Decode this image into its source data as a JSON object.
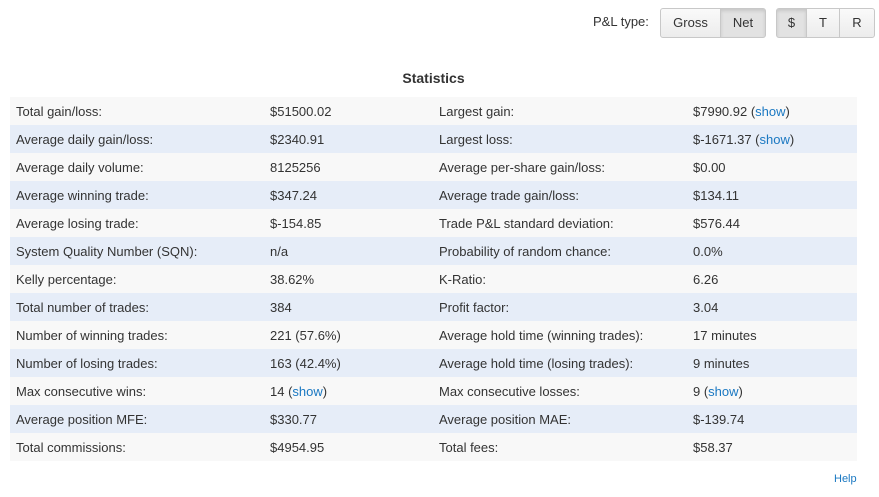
{
  "toolbar": {
    "label": "P&L type:",
    "type_buttons": [
      "Gross",
      "Net"
    ],
    "unit_buttons": [
      "$",
      "T",
      "R"
    ]
  },
  "title": "Statistics",
  "table": {
    "rows": [
      [
        "Total gain/loss:",
        "$51500.02",
        "Largest gain:",
        {
          "before": "$7990.92 (",
          "link": "show",
          "after": ")"
        }
      ],
      [
        "Average daily gain/loss:",
        "$2340.91",
        "Largest loss:",
        {
          "before": "$-1671.37 (",
          "link": "show",
          "after": ")"
        }
      ],
      [
        "Average daily volume:",
        "8125256",
        "Average per-share gain/loss:",
        "$0.00"
      ],
      [
        "Average winning trade:",
        "$347.24",
        "Average trade gain/loss:",
        "$134.11"
      ],
      [
        "Average losing trade:",
        "$-154.85",
        "Trade P&L standard deviation:",
        "$576.44"
      ],
      [
        "System Quality Number (SQN):",
        "n/a",
        "Probability of random chance:",
        "0.0%"
      ],
      [
        "Kelly percentage:",
        "38.62%",
        "K-Ratio:",
        "6.26"
      ],
      [
        "Total number of trades:",
        "384",
        "Profit factor:",
        "3.04"
      ],
      [
        "Number of winning trades:",
        "221 (57.6%)",
        "Average hold time (winning trades):",
        "17 minutes"
      ],
      [
        "Number of losing trades:",
        "163 (42.4%)",
        "Average hold time (losing trades):",
        "9 minutes"
      ],
      [
        "Max consecutive wins:",
        {
          "before": "14 (",
          "link": "show",
          "after": ")"
        },
        "Max consecutive losses:",
        {
          "before": "9 (",
          "link": "show",
          "after": ")"
        }
      ],
      [
        "Average position MFE:",
        "$330.77",
        "Average position MAE:",
        "$-139.74"
      ],
      [
        "Total commissions:",
        "$4954.95",
        "Total fees:",
        "$58.37"
      ]
    ]
  },
  "help": "Help"
}
